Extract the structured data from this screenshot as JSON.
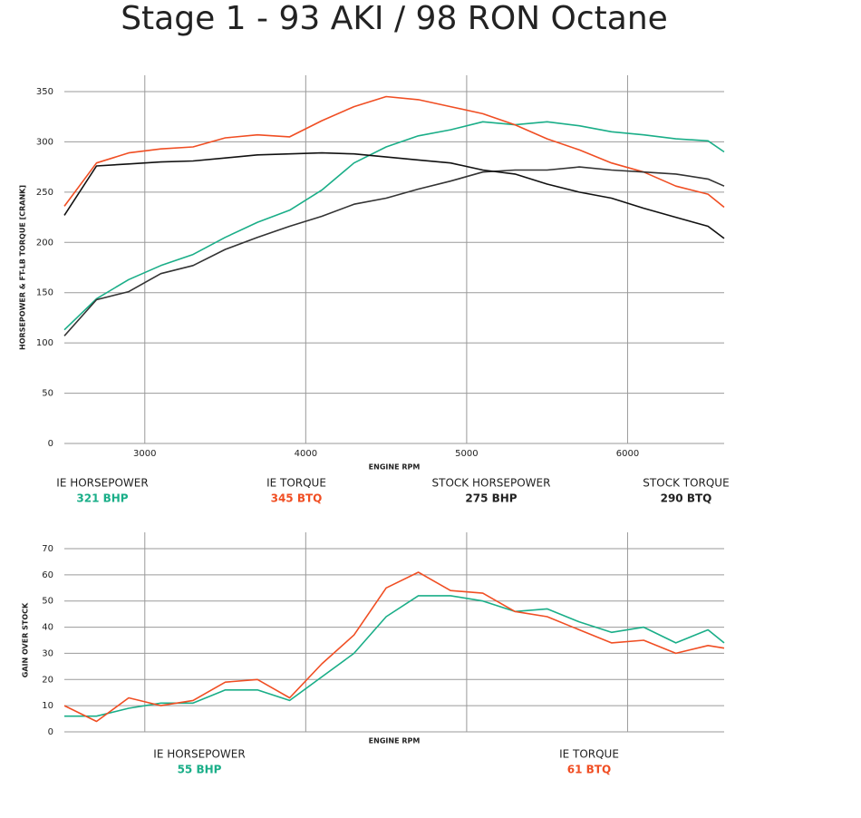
{
  "title": "Stage 1 - 93 AKI / 98 RON Octane",
  "chart_data": [
    {
      "type": "line",
      "x_label": "ENGINE RPM",
      "y_label": "HORSEPOWER & FT-LB TORQUE [CRANK]",
      "xlim": [
        2500,
        6600
      ],
      "xticks": [
        3000,
        4000,
        5000,
        6000
      ],
      "xtick_labels": true,
      "ylim": [
        0,
        350
      ],
      "yticks": [
        0,
        50,
        100,
        150,
        200,
        250,
        300,
        350
      ],
      "grid": true,
      "x": [
        2500,
        2700,
        2900,
        3100,
        3300,
        3500,
        3700,
        3900,
        4100,
        4300,
        4500,
        4700,
        4900,
        5100,
        5300,
        5500,
        5700,
        5900,
        6100,
        6300,
        6500,
        6600
      ],
      "series": [
        {
          "name": "IE HORSEPOWER",
          "legend_value": "321 BHP",
          "color": "#1aae88",
          "values": [
            113,
            144,
            163,
            177,
            188,
            205,
            220,
            232,
            252,
            279,
            295,
            306,
            312,
            320,
            317,
            320,
            316,
            310,
            307,
            303,
            301,
            290
          ]
        },
        {
          "name": "IE TORQUE",
          "legend_value": "345 BTQ",
          "color": "#f04e23",
          "values": [
            236,
            279,
            289,
            293,
            295,
            304,
            307,
            305,
            321,
            335,
            345,
            342,
            335,
            328,
            317,
            303,
            292,
            279,
            270,
            256,
            248,
            235
          ]
        },
        {
          "name": "STOCK HORSEPOWER",
          "legend_value": "275 BHP",
          "color": "#333333",
          "values": [
            107,
            143,
            151,
            169,
            177,
            193,
            205,
            216,
            226,
            238,
            244,
            253,
            261,
            270,
            272,
            272,
            275,
            272,
            270,
            268,
            263,
            256
          ]
        },
        {
          "name": "STOCK TORQUE",
          "legend_value": "290 BTQ",
          "color": "#111111",
          "values": [
            227,
            276,
            278,
            280,
            281,
            284,
            287,
            288,
            289,
            288,
            285,
            282,
            279,
            272,
            268,
            258,
            250,
            244,
            234,
            225,
            216,
            204
          ]
        }
      ]
    },
    {
      "type": "line",
      "x_label": "ENGINE RPM",
      "y_label": "GAIN OVER STOCK",
      "xlim": [
        2500,
        6600
      ],
      "xticks": [
        3000,
        4000,
        5000,
        6000
      ],
      "xtick_labels": false,
      "ylim": [
        0,
        70
      ],
      "yticks": [
        0,
        10,
        20,
        30,
        40,
        50,
        60,
        70
      ],
      "grid": true,
      "x": [
        2500,
        2700,
        2900,
        3100,
        3300,
        3500,
        3700,
        3900,
        4100,
        4300,
        4500,
        4700,
        4900,
        5100,
        5300,
        5500,
        5700,
        5900,
        6100,
        6300,
        6500,
        6600
      ],
      "series": [
        {
          "name": "IE HORSEPOWER",
          "legend_value": "55 BHP",
          "color": "#1aae88",
          "values": [
            6,
            6,
            9,
            11,
            11,
            16,
            16,
            12,
            21,
            30,
            44,
            52,
            52,
            50,
            46,
            47,
            42,
            38,
            40,
            34,
            39,
            34
          ]
        },
        {
          "name": "IE TORQUE",
          "legend_value": "61 BTQ",
          "color": "#f04e23",
          "values": [
            10,
            4,
            13,
            10,
            12,
            19,
            20,
            13,
            26,
            37,
            55,
            61,
            54,
            53,
            46,
            44,
            39,
            34,
            35,
            30,
            33,
            32
          ]
        }
      ]
    }
  ]
}
